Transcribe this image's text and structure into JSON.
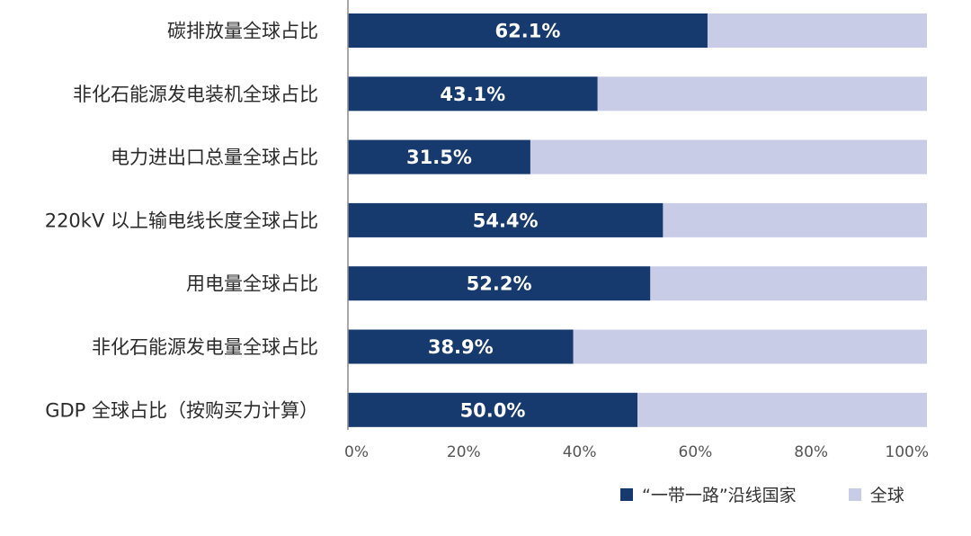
{
  "chart_data": {
    "type": "bar",
    "orientation": "horizontal",
    "stacked_percent": true,
    "categories": [
      "碳排放量全球占比",
      "非化石能源发电装机全球占比",
      "电力进出口总量全球占比",
      "220kV 以上输电线长度全球占比",
      "用电量全球占比",
      "非化石能源发电量全球占比",
      "GDP 全球占比（按购买力计算）"
    ],
    "series": [
      {
        "name": "“一带一路”沿线国家",
        "values": [
          62.1,
          43.1,
          31.5,
          54.4,
          52.2,
          38.9,
          50.0
        ],
        "color": "#173a6e"
      },
      {
        "name": "全球",
        "values": [
          100,
          100,
          100,
          100,
          100,
          100,
          100
        ],
        "color": "#c9cce6"
      }
    ],
    "data_labels": [
      "62.1%",
      "43.1%",
      "31.5%",
      "54.4%",
      "52.2%",
      "38.9%",
      "50.0%"
    ],
    "xlim": [
      0,
      100
    ],
    "xticks": [
      0,
      20,
      40,
      60,
      80,
      100
    ],
    "xtick_labels": [
      "0%",
      "20%",
      "40%",
      "60%",
      "80%",
      "100%"
    ],
    "title": "",
    "xlabel": "",
    "ylabel": "",
    "grid": false,
    "legend_position": "bottom-right"
  }
}
